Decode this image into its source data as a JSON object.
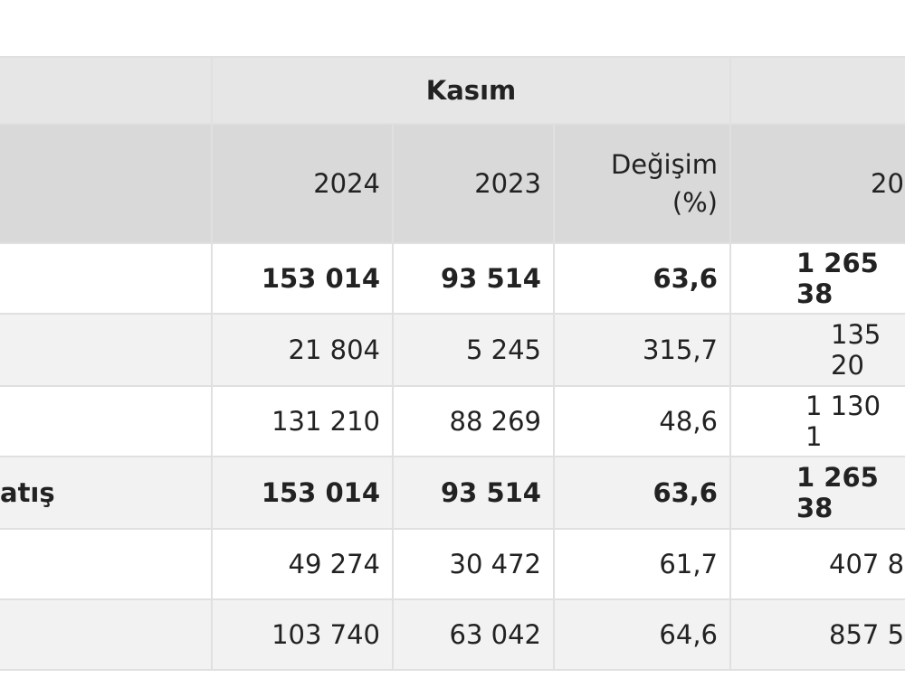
{
  "table": {
    "group_header": "Kasım",
    "columns": [
      "2024",
      "2023",
      "Değişim (%)",
      "20"
    ],
    "rows": [
      {
        "bold": true,
        "cells": [
          "153 014",
          "93 514",
          "63,6",
          "1 265 38"
        ]
      },
      {
        "bold": false,
        "cells": [
          "21 804",
          "5 245",
          "315,7",
          "135 20"
        ]
      },
      {
        "bold": false,
        "cells": [
          "131 210",
          "88 269",
          "48,6",
          "1 130 1"
        ]
      },
      {
        "bold": true,
        "label": "atış",
        "cells": [
          "153 014",
          "93 514",
          "63,6",
          "1 265 38"
        ]
      },
      {
        "bold": false,
        "cells": [
          "49 274",
          "30 472",
          "61,7",
          "407 8"
        ]
      },
      {
        "bold": false,
        "cells": [
          "103 740",
          "63 042",
          "64,6",
          "857 5"
        ]
      }
    ]
  }
}
